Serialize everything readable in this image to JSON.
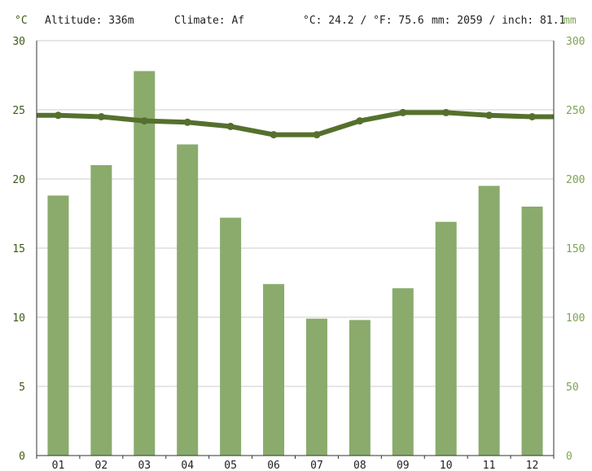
{
  "header": {
    "left_unit": "°C",
    "altitude": "Altitude: 336m",
    "climate": "Climate: Af",
    "temperature": "°C: 24.2 / °F: 75.6",
    "precipitation": "mm: 2059 / inch: 81.1",
    "right_unit": "mm"
  },
  "colors": {
    "bar": "#8aab6c",
    "line": "#55702d",
    "left_axis_text": "#3d5a14",
    "right_axis_text": "#7da352",
    "grid": "#cccccc"
  },
  "chart_data": {
    "type": "bar",
    "categories": [
      "01",
      "02",
      "03",
      "04",
      "05",
      "06",
      "07",
      "08",
      "09",
      "10",
      "11",
      "12"
    ],
    "series": [
      {
        "type": "bar",
        "axis": "right",
        "values": [
          188,
          210,
          278,
          225,
          172,
          124,
          99,
          98,
          121,
          169,
          195,
          180
        ]
      },
      {
        "type": "line",
        "axis": "left",
        "values": [
          24.6,
          24.5,
          24.2,
          24.1,
          23.8,
          23.2,
          23.2,
          24.2,
          24.8,
          24.8,
          24.6,
          24.5
        ]
      }
    ],
    "left_axis": {
      "ticks": [
        "0",
        "5",
        "10",
        "15",
        "20",
        "25",
        "30"
      ],
      "ylim": [
        0,
        30
      ]
    },
    "right_axis": {
      "ticks": [
        "0",
        "50",
        "100",
        "150",
        "200",
        "250",
        "300"
      ],
      "ylim": [
        0,
        300
      ]
    },
    "grid": true
  }
}
